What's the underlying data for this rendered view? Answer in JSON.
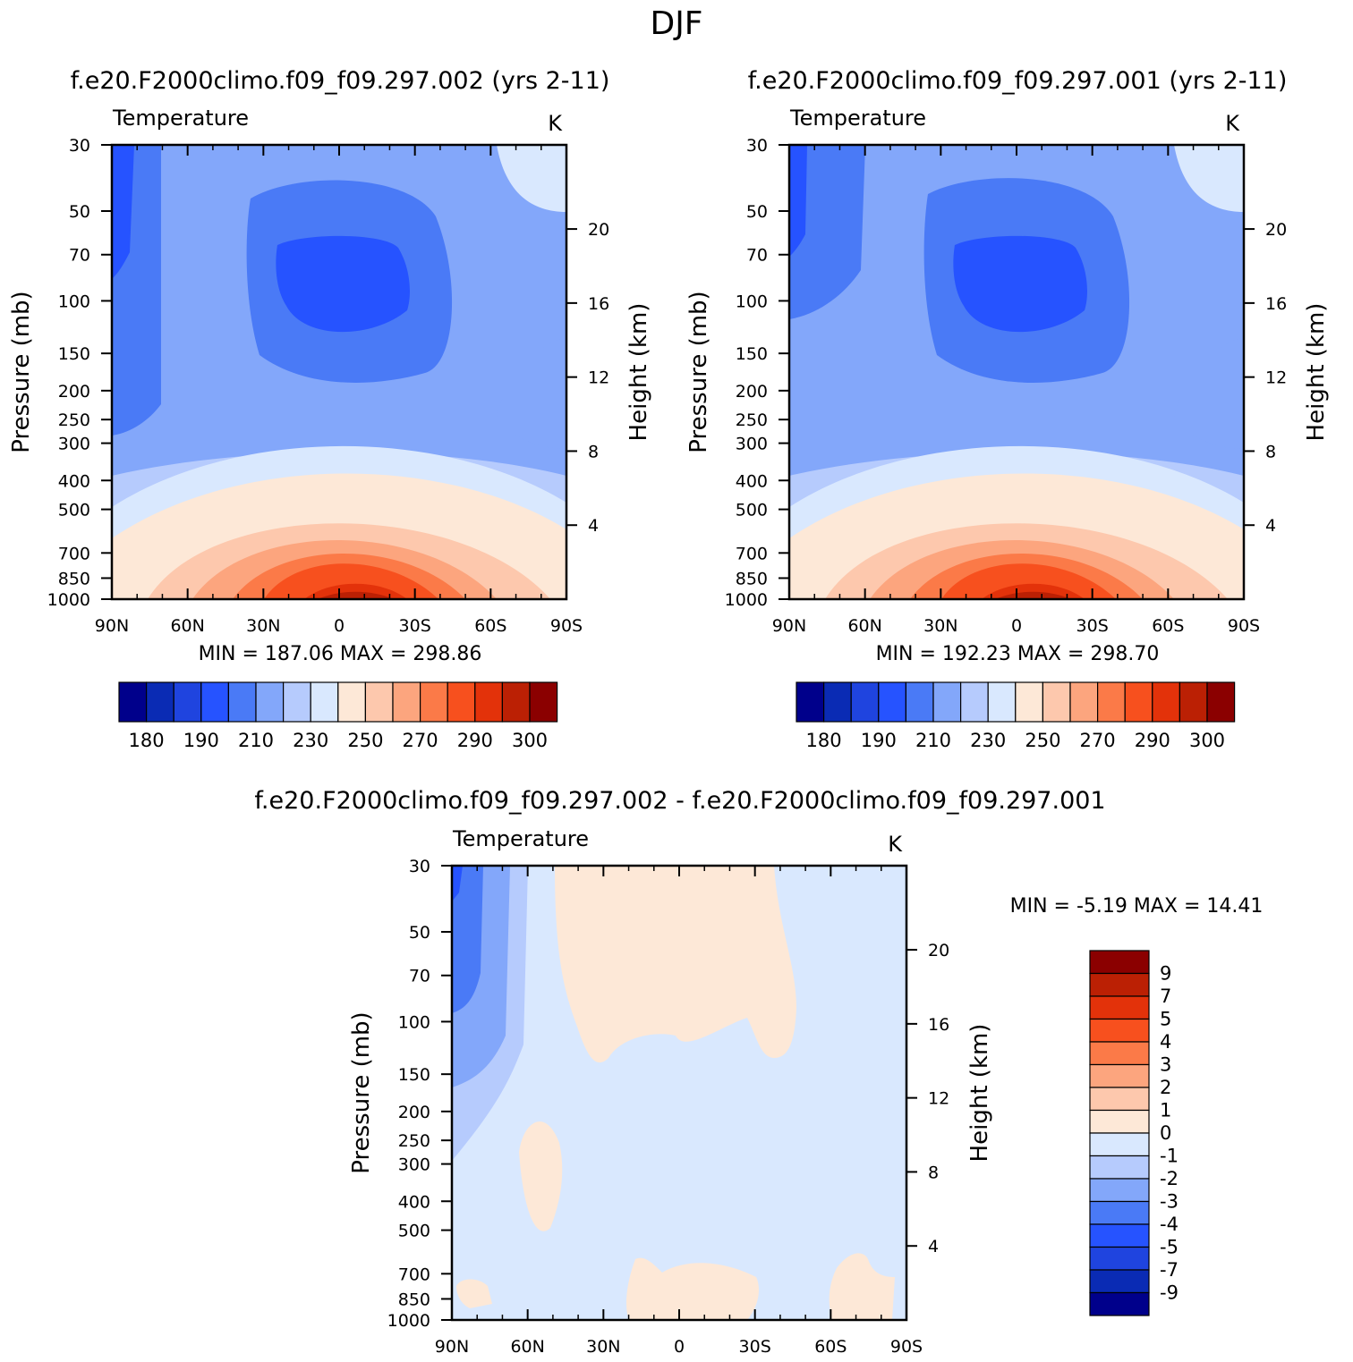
{
  "page_title": "DJF",
  "panels": [
    {
      "title": "f.e20.F2000climo.f09_f09.297.002 (yrs 2-11)",
      "variable": "Temperature",
      "units": "K",
      "ylabel": "Pressure (mb)",
      "ylabel_right": "Height (km)",
      "stats": "MIN = 187.06   MAX = 298.86",
      "min": 187.06,
      "max": 298.86
    },
    {
      "title": "f.e20.F2000climo.f09_f09.297.001 (yrs 2-11)",
      "variable": "Temperature",
      "units": "K",
      "ylabel": "Pressure (mb)",
      "ylabel_right": "Height (km)",
      "stats": "MIN = 192.23   MAX = 298.70",
      "min": 192.23,
      "max": 298.7
    },
    {
      "title": "f.e20.F2000climo.f09_f09.297.002 - f.e20.F2000climo.f09_f09.297.001",
      "variable": "Temperature",
      "units": "K",
      "ylabel": "Pressure (mb)",
      "ylabel_right": "Height (km)",
      "stats": "MIN =   -5.19   MAX =   14.41",
      "min": -5.19,
      "max": 14.41
    }
  ],
  "chart_data": [
    {
      "type": "contour",
      "title": "f.e20.F2000climo.f09_f09.297.002 (yrs 2-11)",
      "x_ticks": [
        "90N",
        "60N",
        "30N",
        "0",
        "30S",
        "60S",
        "90S"
      ],
      "x_values": [
        -90,
        -60,
        -30,
        0,
        30,
        60,
        90
      ],
      "y_ticks": [
        "30",
        "50",
        "70",
        "100",
        "150",
        "200",
        "250",
        "300",
        "400",
        "500",
        "700",
        "850",
        "1000"
      ],
      "y_values": [
        30,
        50,
        70,
        100,
        150,
        200,
        250,
        300,
        400,
        500,
        700,
        850,
        1000
      ],
      "ylim": [
        1000,
        30
      ],
      "y2_ticks": [
        "4",
        "8",
        "12",
        "16",
        "20"
      ],
      "y2_values": [
        4,
        8,
        12,
        16,
        20
      ],
      "colorbar": {
        "labels": [
          "180",
          "190",
          "210",
          "230",
          "250",
          "270",
          "290",
          "300"
        ],
        "colors": [
          "#00008b",
          "#0a2bb4",
          "#1f44df",
          "#2653ff",
          "#4a7af6",
          "#83a7fa",
          "#b6cbfd",
          "#d9e8fe",
          "#fde8d7",
          "#fdc8ad",
          "#fca57e",
          "#fb7a48",
          "#f7501e",
          "#e3320a",
          "#bb2004",
          "#8b0000"
        ]
      }
    },
    {
      "type": "contour",
      "title": "f.e20.F2000climo.f09_f09.297.001 (yrs 2-11)",
      "x_ticks": [
        "90N",
        "60N",
        "30N",
        "0",
        "30S",
        "60S",
        "90S"
      ],
      "x_values": [
        -90,
        -60,
        -30,
        0,
        30,
        60,
        90
      ],
      "y_ticks": [
        "30",
        "50",
        "70",
        "100",
        "150",
        "200",
        "250",
        "300",
        "400",
        "500",
        "700",
        "850",
        "1000"
      ],
      "y_values": [
        30,
        50,
        70,
        100,
        150,
        200,
        250,
        300,
        400,
        500,
        700,
        850,
        1000
      ],
      "ylim": [
        1000,
        30
      ],
      "y2_ticks": [
        "4",
        "8",
        "12",
        "16",
        "20"
      ],
      "y2_values": [
        4,
        8,
        12,
        16,
        20
      ],
      "colorbar": {
        "labels": [
          "180",
          "190",
          "210",
          "230",
          "250",
          "270",
          "290",
          "300"
        ],
        "colors": [
          "#00008b",
          "#0a2bb4",
          "#1f44df",
          "#2653ff",
          "#4a7af6",
          "#83a7fa",
          "#b6cbfd",
          "#d9e8fe",
          "#fde8d7",
          "#fdc8ad",
          "#fca57e",
          "#fb7a48",
          "#f7501e",
          "#e3320a",
          "#bb2004",
          "#8b0000"
        ]
      }
    },
    {
      "type": "contour",
      "title": "f.e20.F2000climo.f09_f09.297.002 - f.e20.F2000climo.f09_f09.297.001",
      "x_ticks": [
        "90N",
        "60N",
        "30N",
        "0",
        "30S",
        "60S",
        "90S"
      ],
      "x_values": [
        -90,
        -60,
        -30,
        0,
        30,
        60,
        90
      ],
      "y_ticks": [
        "30",
        "50",
        "70",
        "100",
        "150",
        "200",
        "250",
        "300",
        "400",
        "500",
        "700",
        "850",
        "1000"
      ],
      "y_values": [
        30,
        50,
        70,
        100,
        150,
        200,
        250,
        300,
        400,
        500,
        700,
        850,
        1000
      ],
      "ylim": [
        1000,
        30
      ],
      "y2_ticks": [
        "4",
        "8",
        "12",
        "16",
        "20"
      ],
      "y2_values": [
        4,
        8,
        12,
        16,
        20
      ],
      "colorbar": {
        "labels": [
          "9",
          "7",
          "5",
          "4",
          "3",
          "2",
          "1",
          "0",
          "-1",
          "-2",
          "-3",
          "-4",
          "-5",
          "-7",
          "-9"
        ],
        "colors": [
          "#8b0000",
          "#bb2004",
          "#e3320a",
          "#f7501e",
          "#fb7a48",
          "#fca57e",
          "#fdc8ad",
          "#fde8d7",
          "#d9e8fe",
          "#b6cbfd",
          "#83a7fa",
          "#4a7af6",
          "#2653ff",
          "#1f44df",
          "#0a2bb4",
          "#00008b"
        ]
      }
    }
  ]
}
